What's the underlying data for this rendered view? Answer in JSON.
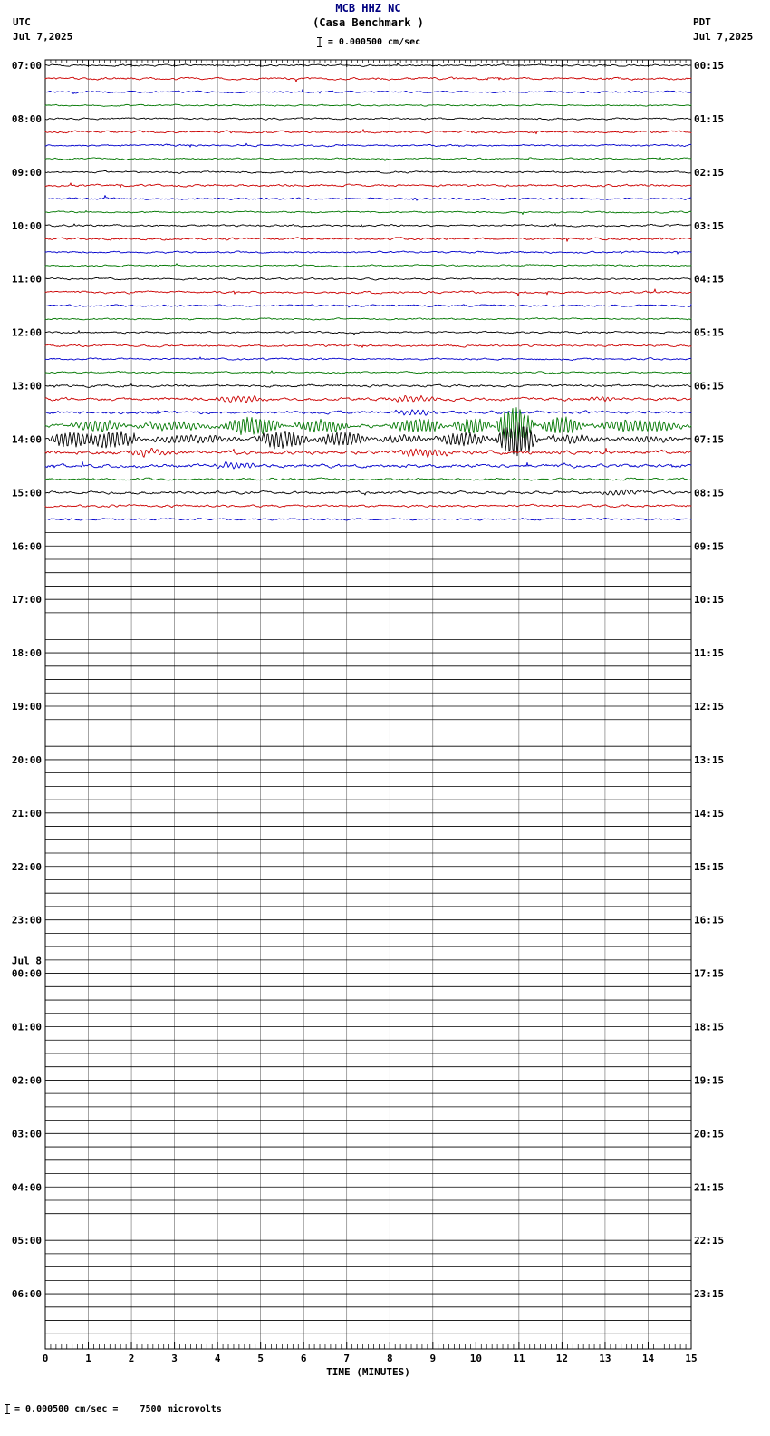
{
  "header": {
    "station_line": "MCB HHZ NC",
    "station_name": "(Casa Benchmark )",
    "scale_text": "= 0.000500 cm/sec",
    "left_tz": "UTC",
    "left_date": "Jul 7,2025",
    "right_tz": "PDT",
    "right_date": "Jul 7,2025"
  },
  "footer": {
    "axis_title": "TIME (MINUTES)",
    "note": "= 0.000500 cm/sec =    7500 microvolts"
  },
  "chart_data": {
    "type": "line",
    "subtype": "helicorder-seismogram",
    "title": "MCB HHZ NC (Casa Benchmark )",
    "scale": "0.000500 cm/sec = 7500 microvolts",
    "timezone_left": "UTC",
    "timezone_right": "PDT",
    "date_left": "Jul 7,2025",
    "date_right": "Jul 7,2025",
    "x_label": "TIME (MINUTES)",
    "x_range": [
      0,
      15
    ],
    "x_ticks": [
      "0",
      "1",
      "2",
      "3",
      "4",
      "5",
      "6",
      "7",
      "8",
      "9",
      "10",
      "11",
      "12",
      "13",
      "14",
      "15"
    ],
    "minutes_per_row": 15,
    "rows_per_hour": 4,
    "grid": true,
    "colors": {
      "black": "#000000",
      "red": "#cc0000",
      "blue": "#0000cc",
      "green": "#007700"
    },
    "events": [
      {
        "utc": "13:15-13:30",
        "desc": "elevated noise bursts on red and blue traces"
      },
      {
        "utc": "13:45",
        "desc": "large oscillatory seismic arrival on green trace, strongest near minute 10.4-11.4"
      },
      {
        "utc": "14:00",
        "desc": "continued large oscillations on black trace, strongest near minute 10.4-11.5"
      },
      {
        "utc": "14:15-15:30",
        "desc": "decaying coda / elevated noise"
      },
      {
        "utc": "15:45 onward",
        "desc": "flat traces (no data yet for future times)"
      }
    ],
    "rows": [
      {
        "utc": "07:00",
        "pdt": "00:15",
        "c": "black",
        "a": 1
      },
      {
        "c": "red",
        "a": 1.2
      },
      {
        "c": "blue",
        "a": 1
      },
      {
        "c": "green",
        "a": 0.9
      },
      {
        "utc": "08:00",
        "pdt": "01:15",
        "c": "black",
        "a": 1
      },
      {
        "c": "red",
        "a": 1.2
      },
      {
        "c": "blue",
        "a": 1
      },
      {
        "c": "green",
        "a": 0.9
      },
      {
        "utc": "09:00",
        "pdt": "02:15",
        "c": "black",
        "a": 1
      },
      {
        "c": "red",
        "a": 1.2
      },
      {
        "c": "blue",
        "a": 1
      },
      {
        "c": "green",
        "a": 0.9
      },
      {
        "utc": "10:00",
        "pdt": "03:15",
        "c": "black",
        "a": 1
      },
      {
        "c": "red",
        "a": 1.2
      },
      {
        "c": "blue",
        "a": 1
      },
      {
        "c": "green",
        "a": 0.9
      },
      {
        "utc": "11:00",
        "pdt": "04:15",
        "c": "black",
        "a": 1
      },
      {
        "c": "red",
        "a": 1.2
      },
      {
        "c": "blue",
        "a": 1
      },
      {
        "c": "green",
        "a": 0.9
      },
      {
        "utc": "12:00",
        "pdt": "05:15",
        "c": "black",
        "a": 1
      },
      {
        "c": "red",
        "a": 1.2
      },
      {
        "c": "blue",
        "a": 1
      },
      {
        "c": "green",
        "a": 0.9
      },
      {
        "utc": "13:00",
        "pdt": "06:15",
        "c": "black",
        "a": 1.3
      },
      {
        "c": "red",
        "a": 1.6,
        "b": [
          [
            3.8,
            5.2,
            3,
            8
          ],
          [
            7.8,
            9.2,
            3,
            8
          ],
          [
            12.5,
            13.3,
            2,
            8
          ]
        ]
      },
      {
        "c": "blue",
        "a": 1.6,
        "b": [
          [
            8,
            9.2,
            2.5,
            8
          ]
        ]
      },
      {
        "c": "green",
        "a": 1.8,
        "b": [
          [
            0.5,
            2,
            5,
            9
          ],
          [
            2,
            4,
            4,
            9
          ],
          [
            4,
            5.6,
            9,
            10
          ],
          [
            5.6,
            7.2,
            6,
            10
          ],
          [
            7.9,
            9.4,
            7,
            10
          ],
          [
            9.4,
            10.4,
            8,
            10
          ],
          [
            10.4,
            11.4,
            20,
            11
          ],
          [
            11.4,
            12.6,
            9,
            10
          ],
          [
            12.6,
            15,
            6,
            9
          ]
        ]
      },
      {
        "utc": "14:00",
        "pdt": "07:15",
        "c": "black",
        "a": 1.8,
        "b": [
          [
            0,
            1.2,
            8,
            10
          ],
          [
            0.9,
            2.2,
            9,
            10
          ],
          [
            2.2,
            4.6,
            4,
            9
          ],
          [
            4.8,
            6.2,
            9,
            10
          ],
          [
            6.2,
            7.6,
            7,
            10
          ],
          [
            7.6,
            9,
            3.5,
            9
          ],
          [
            9,
            10.4,
            7,
            10
          ],
          [
            10.4,
            11.5,
            18,
            11
          ],
          [
            11.5,
            13,
            4,
            9
          ],
          [
            13,
            15,
            2.5,
            9
          ]
        ]
      },
      {
        "c": "red",
        "a": 2,
        "b": [
          [
            1.8,
            3,
            3,
            8
          ],
          [
            8,
            9.6,
            4,
            9
          ]
        ]
      },
      {
        "c": "blue",
        "a": 1.8,
        "b": [
          [
            3.8,
            5,
            3,
            8
          ]
        ]
      },
      {
        "c": "green",
        "a": 1.2
      },
      {
        "utc": "15:00",
        "pdt": "08:15",
        "c": "black",
        "a": 1.5,
        "b": [
          [
            12.8,
            14,
            2.5,
            8
          ]
        ]
      },
      {
        "c": "red",
        "a": 1.2
      },
      {
        "c": "blue",
        "a": 1
      },
      {
        "c": "green",
        "a": 0
      },
      {
        "utc": "16:00",
        "pdt": "09:15",
        "c": "black",
        "a": 0
      },
      {
        "c": "red",
        "a": 0
      },
      {
        "c": "blue",
        "a": 0
      },
      {
        "c": "green",
        "a": 0
      },
      {
        "utc": "17:00",
        "pdt": "10:15",
        "c": "black",
        "a": 0
      },
      {
        "c": "red",
        "a": 0
      },
      {
        "c": "blue",
        "a": 0
      },
      {
        "c": "green",
        "a": 0
      },
      {
        "utc": "18:00",
        "pdt": "11:15",
        "c": "black",
        "a": 0
      },
      {
        "c": "red",
        "a": 0
      },
      {
        "c": "blue",
        "a": 0
      },
      {
        "c": "green",
        "a": 0
      },
      {
        "utc": "19:00",
        "pdt": "12:15",
        "c": "black",
        "a": 0
      },
      {
        "c": "red",
        "a": 0
      },
      {
        "c": "blue",
        "a": 0
      },
      {
        "c": "green",
        "a": 0
      },
      {
        "utc": "20:00",
        "pdt": "13:15",
        "c": "black",
        "a": 0
      },
      {
        "c": "red",
        "a": 0
      },
      {
        "c": "blue",
        "a": 0
      },
      {
        "c": "green",
        "a": 0
      },
      {
        "utc": "21:00",
        "pdt": "14:15",
        "c": "black",
        "a": 0
      },
      {
        "c": "red",
        "a": 0
      },
      {
        "c": "blue",
        "a": 0
      },
      {
        "c": "green",
        "a": 0
      },
      {
        "utc": "22:00",
        "pdt": "15:15",
        "c": "black",
        "a": 0
      },
      {
        "c": "red",
        "a": 0
      },
      {
        "c": "blue",
        "a": 0
      },
      {
        "c": "green",
        "a": 0
      },
      {
        "utc": "23:00",
        "pdt": "16:15",
        "c": "black",
        "a": 0
      },
      {
        "c": "red",
        "a": 0
      },
      {
        "c": "blue",
        "a": 0
      },
      {
        "c": "green",
        "a": 0
      },
      {
        "pre": "Jul 8",
        "utc": "00:00",
        "pdt": "17:15",
        "c": "black",
        "a": 0
      },
      {
        "c": "red",
        "a": 0
      },
      {
        "c": "blue",
        "a": 0
      },
      {
        "c": "green",
        "a": 0
      },
      {
        "utc": "01:00",
        "pdt": "18:15",
        "c": "black",
        "a": 0
      },
      {
        "c": "red",
        "a": 0
      },
      {
        "c": "blue",
        "a": 0
      },
      {
        "c": "green",
        "a": 0
      },
      {
        "utc": "02:00",
        "pdt": "19:15",
        "c": "black",
        "a": 0
      },
      {
        "c": "red",
        "a": 0
      },
      {
        "c": "blue",
        "a": 0
      },
      {
        "c": "green",
        "a": 0
      },
      {
        "utc": "03:00",
        "pdt": "20:15",
        "c": "black",
        "a": 0
      },
      {
        "c": "red",
        "a": 0
      },
      {
        "c": "blue",
        "a": 0
      },
      {
        "c": "green",
        "a": 0
      },
      {
        "utc": "04:00",
        "pdt": "21:15",
        "c": "black",
        "a": 0
      },
      {
        "c": "red",
        "a": 0
      },
      {
        "c": "blue",
        "a": 0
      },
      {
        "c": "green",
        "a": 0
      },
      {
        "utc": "05:00",
        "pdt": "22:15",
        "c": "black",
        "a": 0
      },
      {
        "c": "red",
        "a": 0
      },
      {
        "c": "blue",
        "a": 0
      },
      {
        "c": "green",
        "a": 0
      },
      {
        "utc": "06:00",
        "pdt": "23:15",
        "c": "black",
        "a": 0
      },
      {
        "c": "red",
        "a": 0
      },
      {
        "c": "blue",
        "a": 0
      },
      {
        "c": "green",
        "a": 0
      }
    ]
  }
}
